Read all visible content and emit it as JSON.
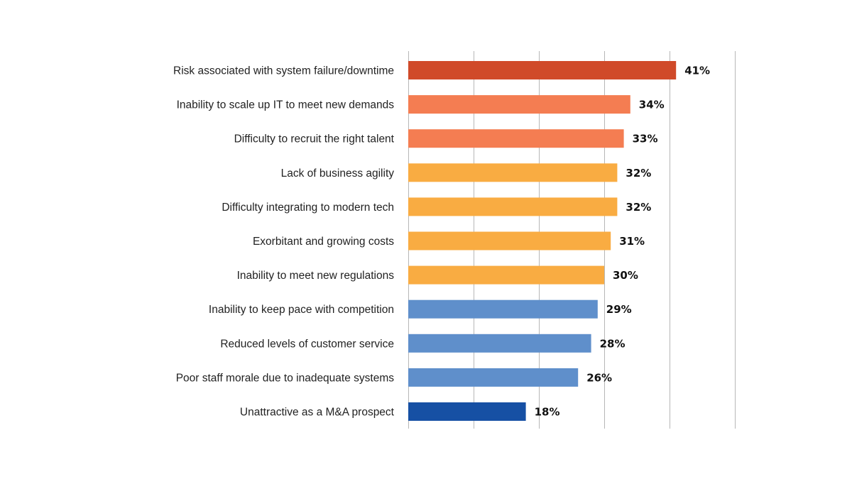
{
  "chart_data": {
    "type": "bar",
    "orientation": "horizontal",
    "title": "",
    "xlabel": "",
    "ylabel": "",
    "xlim": [
      0,
      50
    ],
    "grid": true,
    "value_suffix": "%",
    "categories": [
      "Risk associated with system failure/downtime",
      "Inability to scale up IT to meet new demands",
      "Difficulty to recruit the right talent",
      "Lack of business agility",
      "Difficulty integrating to modern tech",
      "Exorbitant and growing costs",
      "Inability to meet new regulations",
      "Inability to keep pace with competition",
      "Reduced levels of customer service",
      "Poor staff morale due to inadequate systems",
      "Unattractive as a M&A prospect"
    ],
    "values": [
      41,
      34,
      33,
      32,
      32,
      31,
      30,
      29,
      28,
      26,
      18
    ],
    "value_labels": [
      "41%",
      "34%",
      "33%",
      "32%",
      "32%",
      "31%",
      "30%",
      "29%",
      "28%",
      "26%",
      "18%"
    ],
    "bar_colors": [
      "#d04a29",
      "#f47d52",
      "#f47d52",
      "#f9ac42",
      "#f9ac42",
      "#f9ac42",
      "#f9ac42",
      "#5f8fcb",
      "#5f8fcb",
      "#5f8fcb",
      "#1650a4"
    ]
  }
}
